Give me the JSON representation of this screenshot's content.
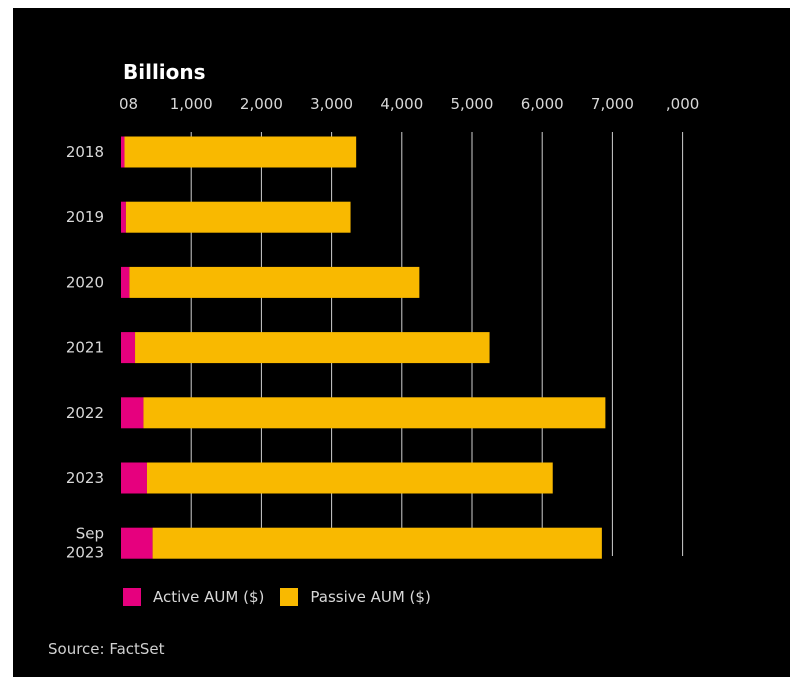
{
  "chart_data": {
    "type": "bar",
    "orientation": "horizontal",
    "stacked": true,
    "unit_label": "Billions",
    "x_tick_labels": [
      "08",
      "1,000",
      "2,000",
      "3,000",
      "4,000",
      "5,000",
      "6,000",
      "7,000",
      ",000"
    ],
    "xlim": [
      0,
      8000
    ],
    "categories": [
      "2018",
      "2019",
      "2020",
      "2021",
      "2022",
      "2023",
      "Sep\n2023"
    ],
    "series": [
      {
        "name": "Active AUM ($)",
        "color": "#e6007e",
        "values": [
          50,
          70,
          120,
          200,
          320,
          370,
          450
        ]
      },
      {
        "name": "Passive AUM ($)",
        "color": "#f9b900",
        "values": [
          3300,
          3200,
          4130,
          5050,
          6580,
          5780,
          6400
        ]
      }
    ],
    "grid": true,
    "legend_position": "bottom-left"
  },
  "source": "Source: FactSet"
}
